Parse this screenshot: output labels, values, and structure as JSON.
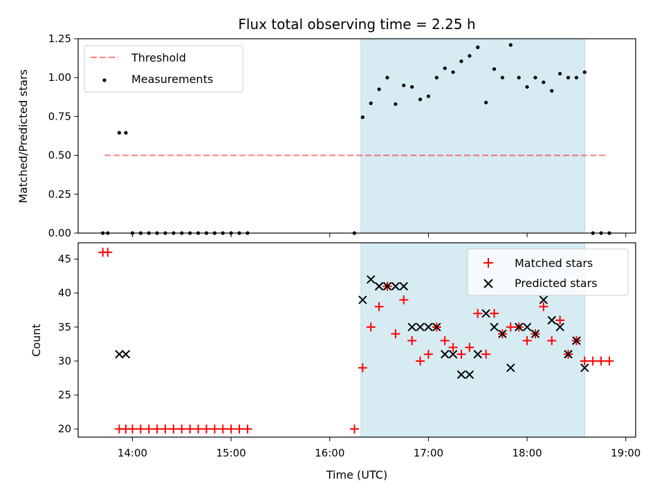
{
  "title": "Flux total observing time = 2.25 h",
  "colors": {
    "shade": "#add8e6",
    "threshold": "#ff0000",
    "measurement": "#000000",
    "matched": "#ff0000",
    "predicted": "#000000"
  },
  "chart_data": [
    {
      "type": "scatter",
      "ylabel": "Matched/Predicted stars",
      "xlim": [
        "13:27",
        "19:06"
      ],
      "ylim": [
        0,
        1.25
      ],
      "yticks": [
        0.0,
        0.25,
        0.5,
        0.75,
        1.0,
        1.25
      ],
      "ytick_labels": [
        "0.00",
        "0.25",
        "0.50",
        "0.75",
        "1.00",
        "1.25"
      ],
      "grid": false,
      "legend": "upper-left",
      "shaded_span": [
        "16:19",
        "18:35"
      ],
      "threshold": {
        "name": "Threshold",
        "style": "dashed",
        "x": [
          "13:43",
          "18:49"
        ],
        "y": 0.5
      },
      "measurements": {
        "name": "Measurements",
        "points": [
          [
            "13:42",
            0.0
          ],
          [
            "13:45",
            0.0
          ],
          [
            "13:52",
            0.645
          ],
          [
            "13:56",
            0.645
          ],
          [
            "14:00",
            0.0
          ],
          [
            "14:05",
            0.0
          ],
          [
            "14:10",
            0.0
          ],
          [
            "14:15",
            0.0
          ],
          [
            "14:20",
            0.0
          ],
          [
            "14:25",
            0.0
          ],
          [
            "14:30",
            0.0
          ],
          [
            "14:35",
            0.0
          ],
          [
            "14:40",
            0.0
          ],
          [
            "14:45",
            0.0
          ],
          [
            "14:50",
            0.0
          ],
          [
            "14:55",
            0.0
          ],
          [
            "15:00",
            0.0
          ],
          [
            "15:05",
            0.0
          ],
          [
            "15:10",
            0.0
          ],
          [
            "16:15",
            0.0
          ],
          [
            "16:20",
            0.745
          ],
          [
            "16:25",
            0.835
          ],
          [
            "16:30",
            0.925
          ],
          [
            "16:35",
            1.0
          ],
          [
            "16:40",
            0.83
          ],
          [
            "16:45",
            0.95
          ],
          [
            "16:50",
            0.94
          ],
          [
            "16:55",
            0.86
          ],
          [
            "17:00",
            0.88
          ],
          [
            "17:05",
            1.0
          ],
          [
            "17:10",
            1.06
          ],
          [
            "17:15",
            1.035
          ],
          [
            "17:20",
            1.105
          ],
          [
            "17:25",
            1.14
          ],
          [
            "17:30",
            1.195
          ],
          [
            "17:35",
            0.84
          ],
          [
            "17:40",
            1.055
          ],
          [
            "17:45",
            1.0
          ],
          [
            "17:50",
            1.21
          ],
          [
            "17:55",
            1.0
          ],
          [
            "18:00",
            0.94
          ],
          [
            "18:05",
            1.0
          ],
          [
            "18:10",
            0.97
          ],
          [
            "18:15",
            0.915
          ],
          [
            "18:20",
            1.025
          ],
          [
            "18:25",
            1.0
          ],
          [
            "18:30",
            1.0
          ],
          [
            "18:35",
            1.035
          ],
          [
            "18:40",
            0.0
          ],
          [
            "18:45",
            0.0
          ],
          [
            "18:50",
            0.0
          ]
        ]
      }
    },
    {
      "type": "scatter",
      "xlabel": "Time (UTC)",
      "ylabel": "Count",
      "xlim": [
        "13:27",
        "19:06"
      ],
      "ylim": [
        18.8,
        47.4
      ],
      "yticks": [
        20,
        25,
        30,
        35,
        40,
        45
      ],
      "xticks": [
        "14:00",
        "15:00",
        "16:00",
        "17:00",
        "18:00",
        "19:00"
      ],
      "grid": false,
      "legend": "upper-right",
      "shaded_span": [
        "16:19",
        "18:35"
      ],
      "series": [
        {
          "name": "Matched stars",
          "marker": "plus",
          "points": [
            [
              "13:42",
              46
            ],
            [
              "13:45",
              46
            ],
            [
              "13:52",
              20
            ],
            [
              "13:56",
              20
            ],
            [
              "14:00",
              20
            ],
            [
              "14:05",
              20
            ],
            [
              "14:10",
              20
            ],
            [
              "14:15",
              20
            ],
            [
              "14:20",
              20
            ],
            [
              "14:25",
              20
            ],
            [
              "14:30",
              20
            ],
            [
              "14:35",
              20
            ],
            [
              "14:40",
              20
            ],
            [
              "14:45",
              20
            ],
            [
              "14:50",
              20
            ],
            [
              "14:55",
              20
            ],
            [
              "15:00",
              20
            ],
            [
              "15:05",
              20
            ],
            [
              "15:10",
              20
            ],
            [
              "16:15",
              20
            ],
            [
              "16:20",
              29
            ],
            [
              "16:25",
              35
            ],
            [
              "16:30",
              38
            ],
            [
              "16:35",
              41
            ],
            [
              "16:40",
              34
            ],
            [
              "16:45",
              39
            ],
            [
              "16:50",
              33
            ],
            [
              "16:55",
              30
            ],
            [
              "17:00",
              31
            ],
            [
              "17:05",
              35
            ],
            [
              "17:10",
              33
            ],
            [
              "17:15",
              32
            ],
            [
              "17:20",
              31
            ],
            [
              "17:25",
              32
            ],
            [
              "17:30",
              37
            ],
            [
              "17:35",
              31
            ],
            [
              "17:40",
              37
            ],
            [
              "17:45",
              34
            ],
            [
              "17:50",
              35
            ],
            [
              "17:55",
              35
            ],
            [
              "18:00",
              33
            ],
            [
              "18:05",
              34
            ],
            [
              "18:10",
              38
            ],
            [
              "18:15",
              33
            ],
            [
              "18:20",
              36
            ],
            [
              "18:25",
              31
            ],
            [
              "18:30",
              33
            ],
            [
              "18:35",
              30
            ],
            [
              "18:40",
              30
            ],
            [
              "18:45",
              30
            ],
            [
              "18:50",
              30
            ]
          ]
        },
        {
          "name": "Predicted stars",
          "marker": "x",
          "points": [
            [
              "13:52",
              31
            ],
            [
              "13:56",
              31
            ],
            [
              "16:20",
              39
            ],
            [
              "16:25",
              42
            ],
            [
              "16:30",
              41
            ],
            [
              "16:35",
              41
            ],
            [
              "16:40",
              41
            ],
            [
              "16:45",
              41
            ],
            [
              "16:50",
              35
            ],
            [
              "16:55",
              35
            ],
            [
              "17:00",
              35
            ],
            [
              "17:05",
              35
            ],
            [
              "17:10",
              31
            ],
            [
              "17:15",
              31
            ],
            [
              "17:20",
              28
            ],
            [
              "17:25",
              28
            ],
            [
              "17:30",
              31
            ],
            [
              "17:35",
              37
            ],
            [
              "17:40",
              35
            ],
            [
              "17:45",
              34
            ],
            [
              "17:50",
              29
            ],
            [
              "17:55",
              35
            ],
            [
              "18:00",
              35
            ],
            [
              "18:05",
              34
            ],
            [
              "18:10",
              39
            ],
            [
              "18:15",
              36
            ],
            [
              "18:20",
              35
            ],
            [
              "18:25",
              31
            ],
            [
              "18:30",
              33
            ],
            [
              "18:35",
              29
            ]
          ]
        }
      ]
    }
  ]
}
